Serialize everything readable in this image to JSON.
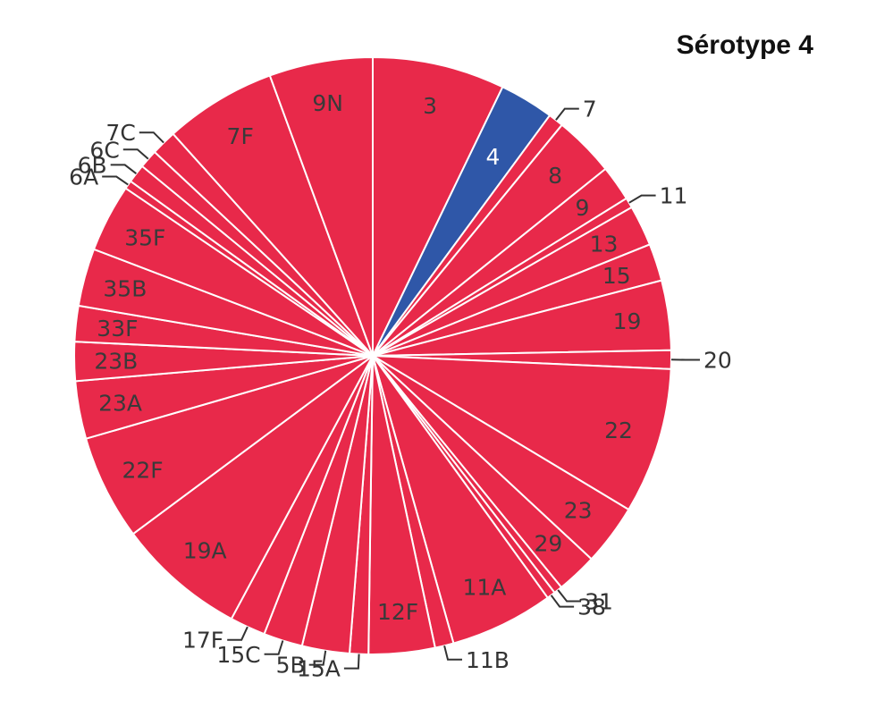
{
  "chart_data": {
    "type": "pie",
    "title": "Sérotype 4",
    "highlight": "4",
    "colors": {
      "base": "#e8294a",
      "highlight": "#2f57a8",
      "border": "#ffffff"
    },
    "slices": [
      {
        "label": "3",
        "value": 7.8
      },
      {
        "label": "4",
        "value": 3.2
      },
      {
        "label": "7",
        "value": 0.9
      },
      {
        "label": "8",
        "value": 3.6
      },
      {
        "label": "9",
        "value": 2.1
      },
      {
        "label": "11",
        "value": 0.6
      },
      {
        "label": "13",
        "value": 2.4
      },
      {
        "label": "15",
        "value": 2.2
      },
      {
        "label": "19",
        "value": 4.1
      },
      {
        "label": "20",
        "value": 1.1
      },
      {
        "label": "22",
        "value": 8.6
      },
      {
        "label": "23",
        "value": 3.6
      },
      {
        "label": "29",
        "value": 2.4
      },
      {
        "label": "31",
        "value": 0.5
      },
      {
        "label": "38",
        "value": 0.5
      },
      {
        "label": "11A",
        "value": 6.1
      },
      {
        "label": "11B",
        "value": 1.1
      },
      {
        "label": "12F",
        "value": 3.9
      },
      {
        "label": "15A",
        "value": 1.1
      },
      {
        "label": "5B",
        "value": 2.8
      },
      {
        "label": "15C",
        "value": 2.3
      },
      {
        "label": "17F",
        "value": 2.1
      },
      {
        "label": "19A",
        "value": 7.6
      },
      {
        "label": "22F",
        "value": 6.2
      },
      {
        "label": "23A",
        "value": 3.4
      },
      {
        "label": "23B",
        "value": 2.3
      },
      {
        "label": "33F",
        "value": 2.1
      },
      {
        "label": "35B",
        "value": 3.4
      },
      {
        "label": "35F",
        "value": 4.0
      },
      {
        "label": "6A",
        "value": 0.5
      },
      {
        "label": "6B",
        "value": 1.1
      },
      {
        "label": "6C",
        "value": 1.1
      },
      {
        "label": "7C",
        "value": 1.5
      },
      {
        "label": "7F",
        "value": 6.6
      },
      {
        "label": "9N",
        "value": 6.1
      }
    ]
  }
}
